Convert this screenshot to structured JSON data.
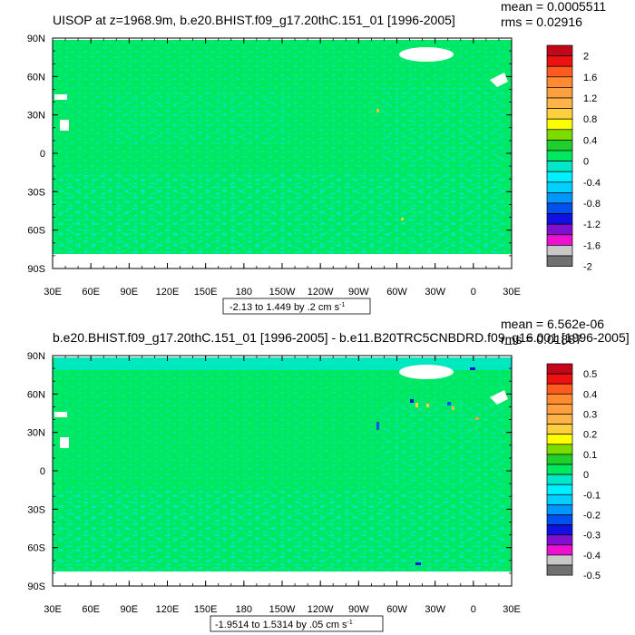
{
  "chart_data": [
    {
      "type": "heatmap",
      "title": "UISOP at z=1968.9m, b.e20.BHIST.f09_g17.20thC.151_01 [1996-2005]",
      "stats": [
        "mean = 0.0005511",
        "rms = 0.02916"
      ],
      "y_ticks": [
        "90N",
        "60N",
        "30N",
        "0",
        "30S",
        "60S",
        "90S"
      ],
      "x_ticks": [
        "30E",
        "60E",
        "90E",
        "120E",
        "150E",
        "180",
        "150W",
        "120W",
        "90W",
        "60W",
        "30W",
        "0",
        "30E"
      ],
      "xlim": [
        30,
        390
      ],
      "ylim": [
        -90,
        90
      ],
      "range_label": "-2.13 to 1.449 by .2 cm s",
      "range_unit_sup": "-1",
      "colorbar": {
        "labels": [
          "2",
          "1.6",
          "1.2",
          "0.8",
          "0.4",
          "0",
          "-0.4",
          "-0.8",
          "-1.2",
          "-1.6",
          "-2"
        ],
        "colors": [
          "#c4061a",
          "#ee1111",
          "#ff5a1f",
          "#ff8a30",
          "#ff9f40",
          "#ffb44a",
          "#ffd03c",
          "#ffff00",
          "#7ddb00",
          "#1fcf2c",
          "#00e860",
          "#00e8c8",
          "#00f0ff",
          "#00cfff",
          "#0096ff",
          "#0050f0",
          "#1010e0",
          "#8010d0",
          "#ee10d0",
          "#c8c8c8",
          "#707070"
        ]
      }
    },
    {
      "type": "heatmap",
      "title": "b.e20.BHIST.f09_g17.20thC.151_01 [1996-2005] - b.e11.B20TRC5CNBDRD.f09_g16.001 [1996-2005]",
      "stats": [
        "mean = 6.562e-06",
        "rms = 0.01887"
      ],
      "y_ticks": [
        "90N",
        "60N",
        "30N",
        "0",
        "30S",
        "60S",
        "90S"
      ],
      "x_ticks": [
        "30E",
        "60E",
        "90E",
        "120E",
        "150E",
        "180",
        "150W",
        "120W",
        "90W",
        "60W",
        "30W",
        "0",
        "30E"
      ],
      "xlim": [
        30,
        390
      ],
      "ylim": [
        -90,
        90
      ],
      "range_label": "-1.9514 to 1.5314 by .05 cm s",
      "range_unit_sup": "-1",
      "colorbar": {
        "labels": [
          "0.5",
          "0.4",
          "0.3",
          "0.2",
          "0.1",
          "0",
          "-0.1",
          "-0.2",
          "-0.3",
          "-0.4",
          "-0.5"
        ],
        "colors": [
          "#c4061a",
          "#ee1111",
          "#ff5a1f",
          "#ff8a30",
          "#ff9f40",
          "#ffb44a",
          "#ffd03c",
          "#ffff00",
          "#7ddb00",
          "#1fcf2c",
          "#00e860",
          "#00e8c8",
          "#00f0ff",
          "#00cfff",
          "#0096ff",
          "#0050f0",
          "#1010e0",
          "#8010d0",
          "#ee10d0",
          "#c8c8c8",
          "#707070"
        ]
      }
    }
  ]
}
